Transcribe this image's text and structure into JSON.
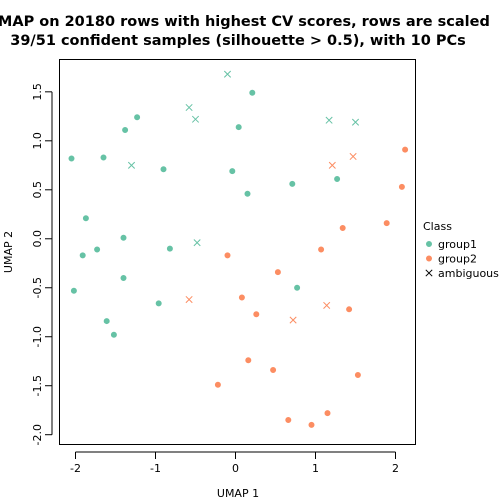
{
  "chart_data": {
    "type": "scatter",
    "title_line1": "UMAP on 20180 rows with highest CV scores, rows are scaled",
    "title_line2": "39/51 confident samples (silhouette > 0.5), with 10 PCs",
    "xlabel": "UMAP 1",
    "ylabel": "UMAP 2",
    "xlim": [
      -2.2,
      2.25
    ],
    "ylim": [
      -2.1,
      1.83
    ],
    "x_ticks": [
      -2,
      -1,
      0,
      1,
      2
    ],
    "x_tick_labels": [
      "-2",
      "-1",
      "0",
      "1",
      "2"
    ],
    "y_ticks": [
      -2.0,
      -1.5,
      -1.0,
      -0.5,
      0.0,
      0.5,
      1.0,
      1.5
    ],
    "y_tick_labels": [
      "-2.0",
      "-1.5",
      "-1.0",
      "-0.5",
      "0.0",
      "0.5",
      "1.0",
      "1.5"
    ],
    "legend": {
      "title": "Class",
      "placement": "right",
      "entries": [
        {
          "label": "group1",
          "marker": "circle",
          "color": "#66c2a5"
        },
        {
          "label": "group2",
          "marker": "circle",
          "color": "#fc8d62"
        },
        {
          "label": "ambiguous",
          "marker": "cross",
          "color": "#000000"
        }
      ]
    },
    "series": [
      {
        "name": "group1",
        "marker": "circle",
        "color": "#66c2a5",
        "points": [
          [
            0.21,
            1.49
          ],
          [
            -1.23,
            1.24
          ],
          [
            -1.38,
            1.11
          ],
          [
            0.04,
            1.14
          ],
          [
            -2.05,
            0.82
          ],
          [
            -1.65,
            0.83
          ],
          [
            -0.9,
            0.71
          ],
          [
            -0.04,
            0.69
          ],
          [
            0.71,
            0.56
          ],
          [
            1.27,
            0.61
          ],
          [
            0.15,
            0.46
          ],
          [
            -1.87,
            0.21
          ],
          [
            -1.4,
            0.01
          ],
          [
            -1.73,
            -0.11
          ],
          [
            -1.91,
            -0.17
          ],
          [
            -0.82,
            -0.1
          ],
          [
            -2.02,
            -0.53
          ],
          [
            -1.4,
            -0.4
          ],
          [
            0.77,
            -0.5
          ],
          [
            -0.96,
            -0.66
          ],
          [
            -1.61,
            -0.84
          ],
          [
            -1.52,
            -0.98
          ]
        ]
      },
      {
        "name": "group2",
        "marker": "circle",
        "color": "#fc8d62",
        "points": [
          [
            2.12,
            0.91
          ],
          [
            2.08,
            0.53
          ],
          [
            1.89,
            0.16
          ],
          [
            1.34,
            0.11
          ],
          [
            1.07,
            -0.11
          ],
          [
            -0.1,
            -0.17
          ],
          [
            0.53,
            -0.34
          ],
          [
            0.08,
            -0.6
          ],
          [
            0.26,
            -0.77
          ],
          [
            1.42,
            -0.72
          ],
          [
            0.16,
            -1.24
          ],
          [
            0.47,
            -1.34
          ],
          [
            1.53,
            -1.39
          ],
          [
            -0.22,
            -1.49
          ],
          [
            1.15,
            -1.78
          ],
          [
            0.66,
            -1.85
          ],
          [
            0.95,
            -1.9
          ]
        ]
      },
      {
        "name": "ambiguous",
        "marker": "cross",
        "color": "#66c2a5",
        "points": [
          [
            -0.1,
            1.68
          ],
          [
            -0.58,
            1.34
          ],
          [
            -0.5,
            1.22
          ],
          [
            -1.3,
            0.75
          ],
          [
            1.17,
            1.21
          ],
          [
            1.5,
            1.19
          ],
          [
            -0.48,
            -0.04
          ]
        ]
      },
      {
        "name": "ambiguous",
        "marker": "cross",
        "color": "#fc8d62",
        "points": [
          [
            1.21,
            0.75
          ],
          [
            1.47,
            0.84
          ],
          [
            -0.58,
            -0.62
          ],
          [
            0.72,
            -0.83
          ],
          [
            1.14,
            -0.68
          ]
        ]
      }
    ],
    "grid": false
  }
}
